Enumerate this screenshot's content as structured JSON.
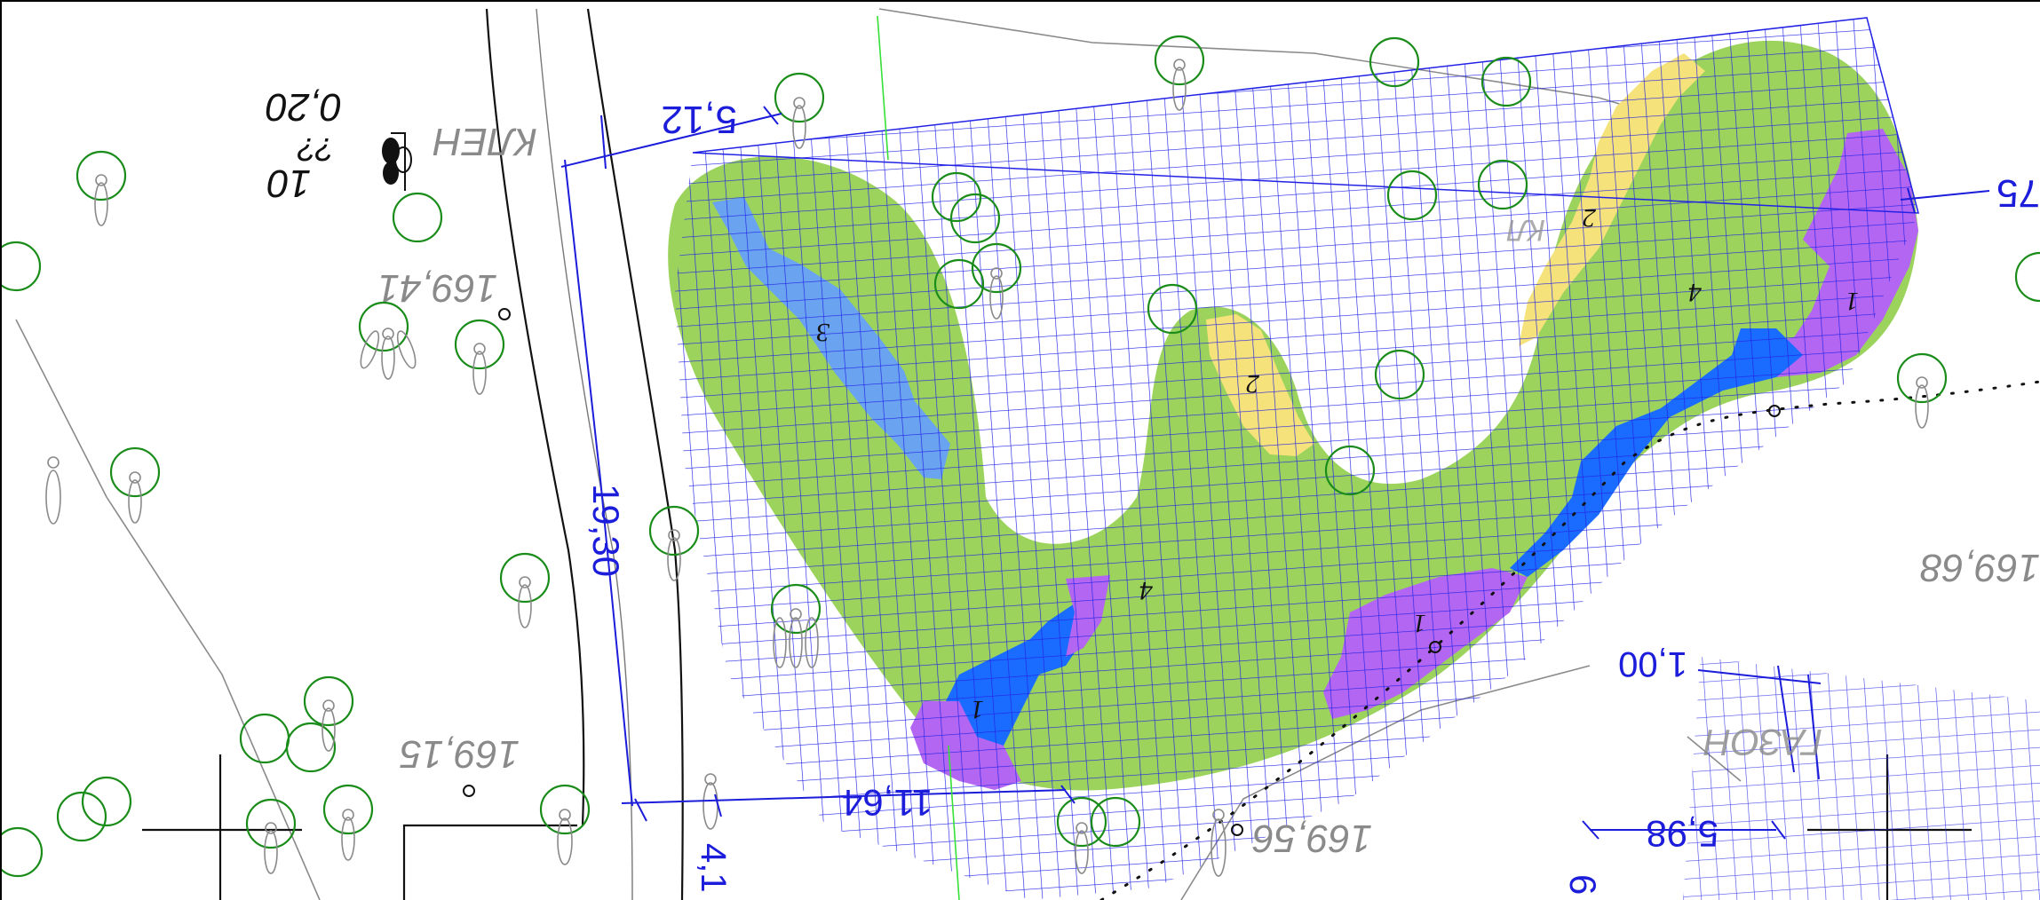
{
  "colors": {
    "grid": "#2222e6",
    "zone_4": "#9bd35c",
    "zone_1_purple": "#b366f2",
    "zone_1_blue": "#1a6bff",
    "zone_2": "#f5e27a",
    "zone_3": "#6aa4f0",
    "tree_circle": "#1a8c1a",
    "dimension": "#1c1cdb",
    "elevation": "#8a8a8a"
  },
  "dimensions": {
    "d_5_12": "5,12",
    "d_19_30": "19,30",
    "d_11_64": "11,64",
    "d_5_98": "5,98",
    "d_1_00": "1,00",
    "d_4_1x": "4,1",
    "d_75": "75",
    "d_6": "6"
  },
  "elevations": {
    "e_169_41": "169,41",
    "e_169_15": "169,15",
    "e_169_56": "169,56",
    "e_169_68": "169,68"
  },
  "zones": {
    "z4_a": "4",
    "z4_b": "4",
    "z1_a": "1",
    "z1_b": "1",
    "z1_c": "1",
    "z2_a": "2",
    "z2_b": "2",
    "z3": "3"
  },
  "notes": {
    "street_name": "КЛЕН",
    "zone_word": "ГАЗОН",
    "plant_label_a": "10",
    "plant_label_b": "0,20",
    "plant_label_c": "??",
    "plant_label_d": "КЛ"
  }
}
